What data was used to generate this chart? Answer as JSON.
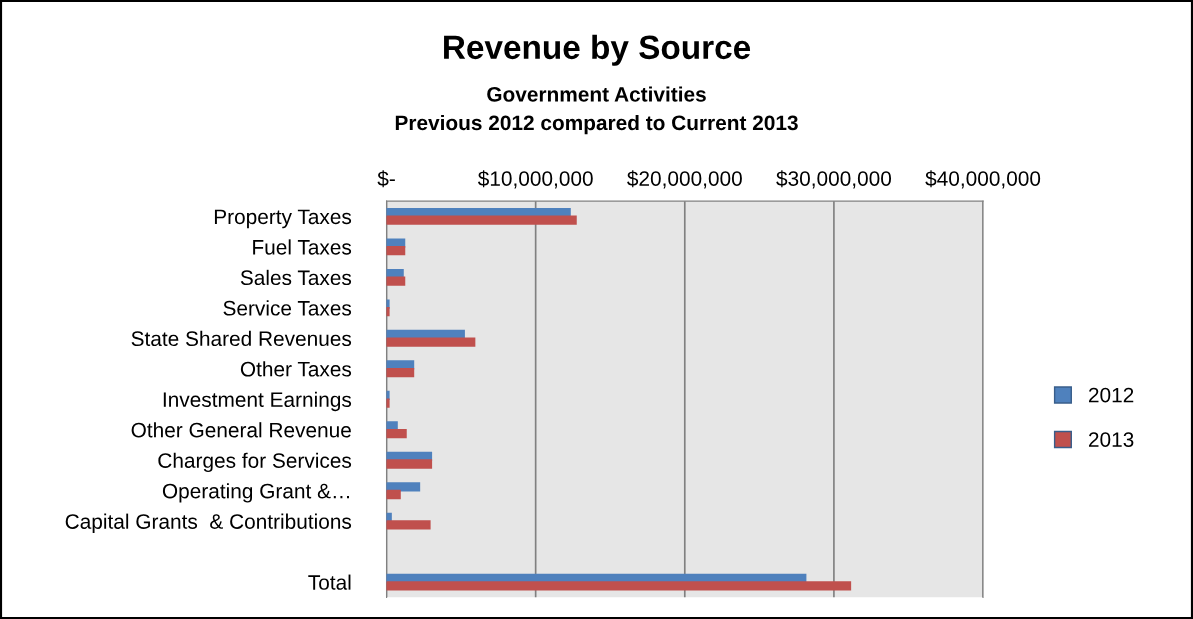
{
  "chart_data": {
    "type": "bar",
    "orientation": "horizontal",
    "title": "Revenue by Source",
    "subtitle": "Government Activities\nPrevious 2012 compared to Current 2013",
    "categories": [
      "Property Taxes",
      "Fuel Taxes",
      "Sales Taxes",
      "Service Taxes",
      "State Shared Revenues",
      "Other Taxes",
      "Investment Earnings",
      "Other General Revenue",
      "Charges for Services",
      "Operating Grant &…",
      "Capital Grants  & Contributions",
      null,
      "Total"
    ],
    "series": [
      {
        "name": "2012",
        "color": "#4f81bd",
        "values": [
          12300000,
          1200000,
          1100000,
          150000,
          5200000,
          1800000,
          150000,
          700000,
          3000000,
          2200000,
          300000,
          null,
          28100000
        ]
      },
      {
        "name": "2013",
        "color": "#c0504d",
        "values": [
          12700000,
          1200000,
          1200000,
          150000,
          5900000,
          1800000,
          150000,
          1300000,
          3000000,
          900000,
          2900000,
          null,
          31100000
        ]
      }
    ],
    "xlim": [
      0,
      40000000
    ],
    "xticks": [
      {
        "value": 0,
        "label": "$-"
      },
      {
        "value": 10000000,
        "label": "$10,000,000"
      },
      {
        "value": 20000000,
        "label": "$20,000,000"
      },
      {
        "value": 30000000,
        "label": "$30,000,000"
      },
      {
        "value": 40000000,
        "label": "$40,000,000"
      }
    ],
    "grid": "x",
    "legend": "right"
  }
}
